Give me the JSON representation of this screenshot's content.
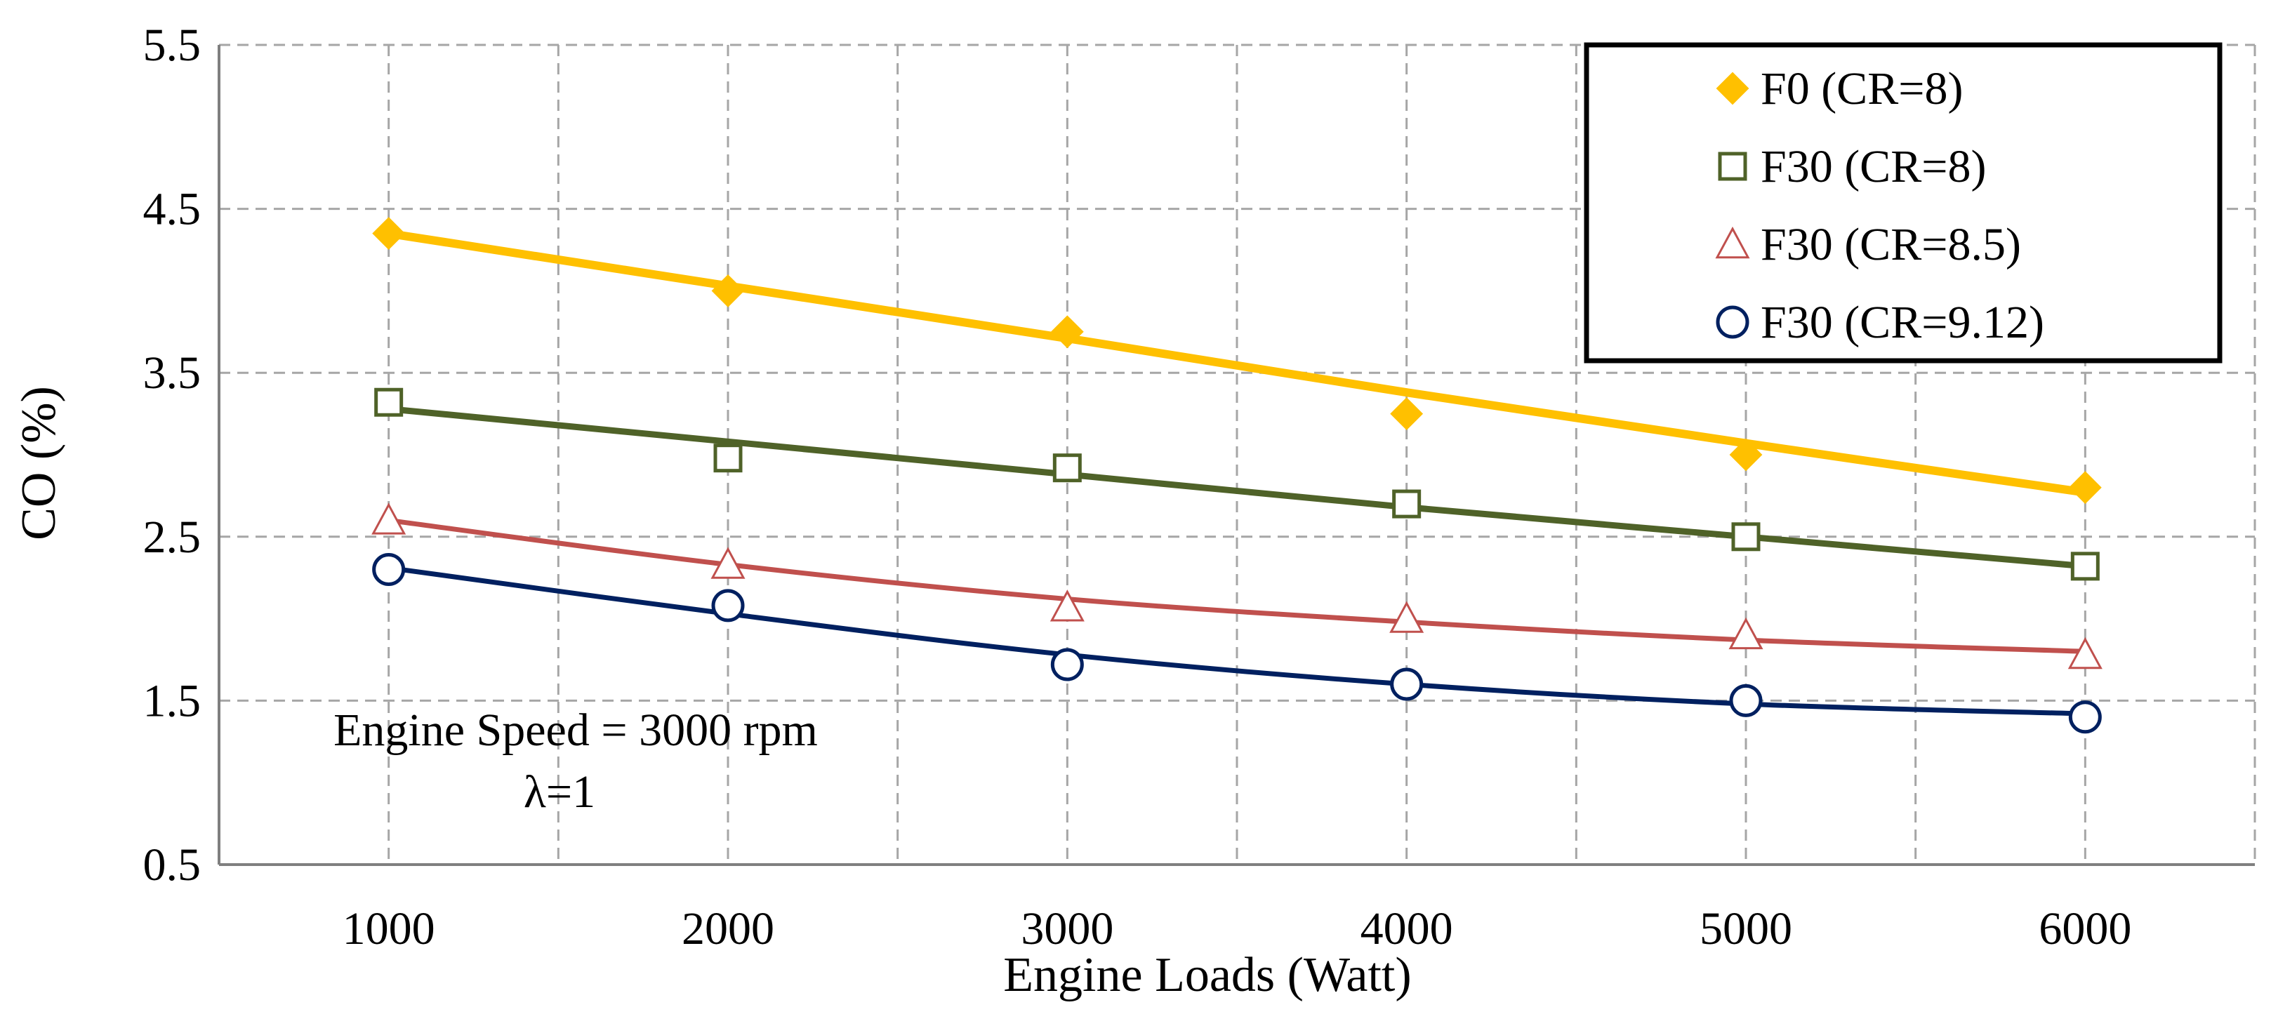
{
  "chart_data": {
    "type": "line",
    "title": "",
    "xlabel": "Engine Loads (Watt)",
    "ylabel": "CO (%)",
    "x": [
      1000,
      2000,
      3000,
      4000,
      5000,
      6000
    ],
    "xticks": [
      "1000",
      "2000",
      "3000",
      "4000",
      "5000",
      "6000"
    ],
    "xlim": [
      500,
      6500
    ],
    "yticks": [
      "0.5",
      "1.5",
      "2.5",
      "3.5",
      "4.5",
      "5.5"
    ],
    "ylim": [
      0.5,
      5.5
    ],
    "grid": true,
    "legend_position": "top-right",
    "series": [
      {
        "name": "F0 (CR=8)",
        "marker": "diamond",
        "color": "#FFC000",
        "values": [
          4.35,
          4.0,
          3.75,
          3.25,
          3.0,
          2.8
        ],
        "trend": [
          4.35,
          4.03,
          3.71,
          3.38,
          3.07,
          2.77
        ]
      },
      {
        "name": "F30 (CR=8)",
        "marker": "square",
        "color": "#4F6228",
        "values": [
          3.32,
          2.98,
          2.92,
          2.7,
          2.5,
          2.32
        ],
        "trend": [
          3.28,
          3.08,
          2.88,
          2.68,
          2.5,
          2.32
        ]
      },
      {
        "name": "F30 (CR=8.5)",
        "marker": "triangle",
        "color": "#C0504D",
        "values": [
          2.6,
          2.33,
          2.07,
          2.0,
          1.9,
          1.78
        ],
        "trend": [
          2.6,
          2.33,
          2.12,
          1.98,
          1.87,
          1.8
        ]
      },
      {
        "name": "F30 (CR=9.12)",
        "marker": "circle",
        "color": "#002060",
        "values": [
          2.3,
          2.08,
          1.72,
          1.6,
          1.5,
          1.4
        ],
        "trend": [
          2.31,
          2.03,
          1.78,
          1.6,
          1.48,
          1.42
        ]
      }
    ],
    "annotations": [
      "Engine Speed = 3000 rpm",
      "λ=1"
    ]
  }
}
